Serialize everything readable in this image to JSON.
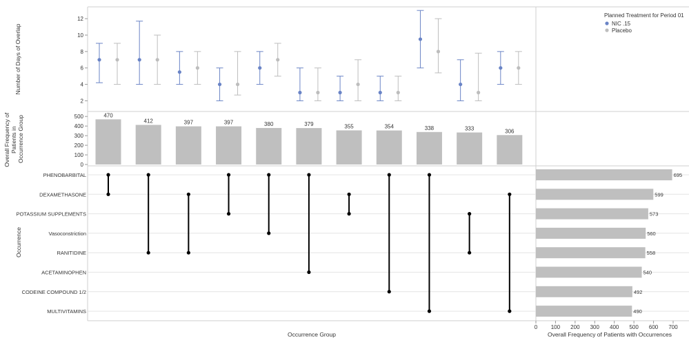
{
  "chart_data": {
    "type": "upset",
    "title": "",
    "x_title": "Occurrence Group",
    "legend": {
      "title": "Planned Treatment for Period 01",
      "position": "top-right",
      "items": [
        {
          "name": "NIC .15",
          "color": "#6a84c6"
        },
        {
          "name": "Placebo",
          "color": "#bdbdbd"
        }
      ]
    },
    "overlap_panel": {
      "ylabel": "Number of Days of Overlap",
      "yticks": [
        2,
        4,
        6,
        8,
        10,
        12
      ],
      "ylim": [
        1.2,
        13.1
      ],
      "series": [
        {
          "name": "NIC .15",
          "color": "#6a84c6",
          "points": [
            {
              "mean": 7.0,
              "low": 4.2,
              "high": 9.0
            },
            {
              "mean": 7.0,
              "low": 4.0,
              "high": 11.7
            },
            {
              "mean": 5.5,
              "low": 4.0,
              "high": 8.0
            },
            {
              "mean": 4.0,
              "low": 2.0,
              "high": 6.0
            },
            {
              "mean": 6.0,
              "low": 4.0,
              "high": 8.0
            },
            {
              "mean": 3.0,
              "low": 2.0,
              "high": 6.0
            },
            {
              "mean": 3.0,
              "low": 2.0,
              "high": 5.0
            },
            {
              "mean": 3.0,
              "low": 2.0,
              "high": 5.0
            },
            {
              "mean": 9.5,
              "low": 6.0,
              "high": 13.0
            },
            {
              "mean": 4.0,
              "low": 2.0,
              "high": 7.0
            },
            {
              "mean": 6.0,
              "low": 4.0,
              "high": 8.0
            }
          ]
        },
        {
          "name": "Placebo",
          "color": "#bdbdbd",
          "points": [
            {
              "mean": 7.0,
              "low": 4.0,
              "high": 9.0
            },
            {
              "mean": 7.0,
              "low": 4.0,
              "high": 10.0
            },
            {
              "mean": 6.0,
              "low": 4.0,
              "high": 8.0
            },
            {
              "mean": 4.0,
              "low": 2.7,
              "high": 8.0
            },
            {
              "mean": 7.0,
              "low": 5.0,
              "high": 9.0
            },
            {
              "mean": 3.0,
              "low": 2.0,
              "high": 6.0
            },
            {
              "mean": 4.0,
              "low": 2.0,
              "high": 7.0
            },
            {
              "mean": 3.0,
              "low": 2.0,
              "high": 5.0
            },
            {
              "mean": 8.0,
              "low": 5.4,
              "high": 12.0
            },
            {
              "mean": 3.0,
              "low": 2.0,
              "high": 7.8
            },
            {
              "mean": 6.0,
              "low": 4.0,
              "high": 8.0
            }
          ]
        }
      ]
    },
    "group_frequency": {
      "ylabel": "Overall Frequency of Patients in Occurrence Group",
      "yticks": [
        0,
        100,
        200,
        300,
        400,
        500
      ],
      "ylim": [
        0,
        530
      ],
      "values": [
        470,
        412,
        397,
        397,
        380,
        379,
        355,
        354,
        338,
        333,
        306
      ],
      "bar_color": "#bfbfbf"
    },
    "occurrences": {
      "ylabel": "Occurrence",
      "items": [
        "PHENOBARBITAL",
        "DEXAMETHASONE",
        "POTASSIUM SUPPLEMENTS",
        "Vasoconstriction",
        "RANITIDINE",
        "ACETAMINOPHEN",
        "CODEINE COMPOUND 1/2",
        "MULTIVITAMINS"
      ],
      "groups": [
        [
          0,
          1
        ],
        [
          0,
          4
        ],
        [
          1,
          4
        ],
        [
          0,
          2
        ],
        [
          0,
          3
        ],
        [
          0,
          5
        ],
        [
          1,
          2
        ],
        [
          0,
          6
        ],
        [
          0,
          7
        ],
        [
          2,
          4
        ],
        [
          1,
          7
        ]
      ]
    },
    "occurrence_frequency": {
      "xlabel": "Overall Frequency of Patients with Occurrences",
      "xticks": [
        0,
        100,
        200,
        300,
        400,
        500,
        600,
        700
      ],
      "xlim": [
        0,
        700
      ],
      "values": [
        695,
        599,
        573,
        560,
        558,
        540,
        492,
        490
      ],
      "bar_color": "#bfbfbf"
    }
  }
}
